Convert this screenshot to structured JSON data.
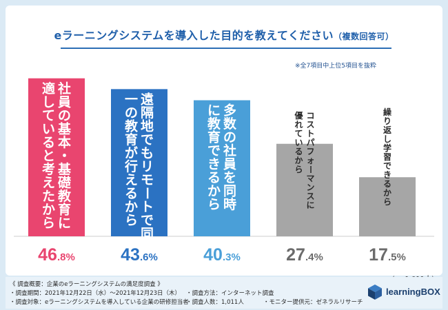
{
  "title": {
    "main": "eラーニングシステムを導入した目的を教えてください",
    "suffix": "（複数回答可）"
  },
  "note": "※全7項目中上位5項目を抜粋",
  "sample_note": "(n=1,011人)",
  "chart_data": {
    "type": "bar",
    "categories": [
      "社員の基本・基礎教育に適していると考えたから",
      "遠隔地でもリモートで同一の教育が行えるから",
      "多数の社員を同時に教育できるから",
      "コストパフォーマンスに優れているから",
      "繰り返し学習できるから"
    ],
    "values": [
      46.8,
      43.6,
      40.3,
      27.4,
      17.5
    ],
    "value_labels": [
      {
        "int": "46",
        "dec": ".8%"
      },
      {
        "int": "43",
        "dec": ".6%"
      },
      {
        "int": "40",
        "dec": ".3%"
      },
      {
        "int": "27",
        "dec": ".4%"
      },
      {
        "int": "17",
        "dec": ".5%"
      }
    ],
    "bar_colors": [
      "#e9456f",
      "#2b72c2",
      "#4a9fd8",
      "#a6a6a6",
      "#a6a6a6"
    ],
    "label_colors": [
      "#e9456f",
      "#2b72c2",
      "#4a9fd8",
      "#6b6b6b",
      "#6b6b6b"
    ],
    "ylim": [
      0,
      50
    ]
  },
  "footer": {
    "line1": "《 調査概要：企業のeラーニングシステムの満足度調査 》",
    "line2": "・調査期間：2021年12月22日（水）～2021年12月23日（木）",
    "line3": "・調査対象：eラーニングシステムを導入している企業の研修担当者",
    "method": "・調査方法：インターネット調査",
    "people": "・調査人数：1,011人",
    "monitor": "・モニター提供元：ゼネラルリサーチ",
    "logo_text": "learningBOX"
  }
}
